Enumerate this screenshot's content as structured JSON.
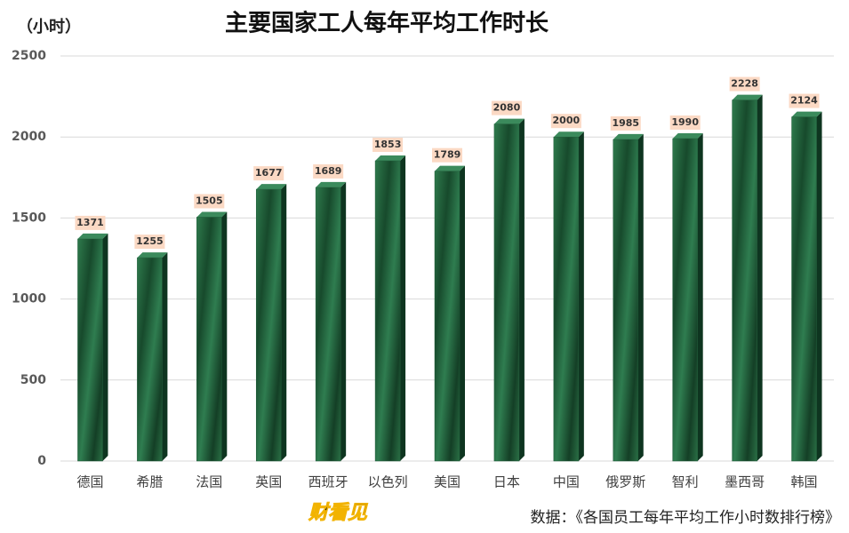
{
  "chart_data": {
    "type": "bar",
    "title": "主要国家工人每年平均工作时长",
    "unit_label": "（小时）",
    "categories": [
      "德国",
      "希腊",
      "法国",
      "英国",
      "西班牙",
      "以色列",
      "美国",
      "日本",
      "中国",
      "俄罗斯",
      "智利",
      "墨西哥",
      "韩国"
    ],
    "values": [
      1371,
      1255,
      1505,
      1677,
      1689,
      1853,
      1789,
      2080,
      2000,
      1985,
      1990,
      2228,
      2124
    ],
    "color": "#1d5a37",
    "ylim": [
      0,
      2500
    ],
    "yticks": [
      0,
      500,
      1000,
      1500,
      2000,
      2500
    ],
    "grid": true,
    "source": "数据：《各国员工每年平均工作小时数排行榜》",
    "logo": "财看见"
  }
}
